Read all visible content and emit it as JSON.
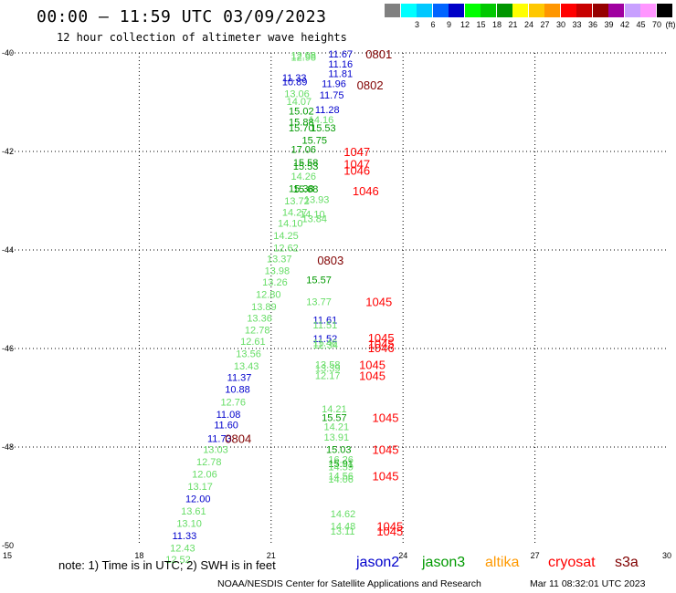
{
  "title": "00:00 – 11:59 UTC 03/09/2023",
  "subtitle": "12 hour collection of altimeter wave heights",
  "legend": {
    "unit": "(ft)",
    "bins": [
      {
        "label": "",
        "color": "#808080"
      },
      {
        "label": "3",
        "color": "#00ffff"
      },
      {
        "label": "6",
        "color": "#00c8ff"
      },
      {
        "label": "9",
        "color": "#0064ff"
      },
      {
        "label": "12",
        "color": "#0000c8"
      },
      {
        "label": "15",
        "color": "#00ff00"
      },
      {
        "label": "18",
        "color": "#00c800"
      },
      {
        "label": "21",
        "color": "#009600"
      },
      {
        "label": "24",
        "color": "#ffff00"
      },
      {
        "label": "27",
        "color": "#ffc800"
      },
      {
        "label": "30",
        "color": "#ff9600"
      },
      {
        "label": "33",
        "color": "#ff0000"
      },
      {
        "label": "36",
        "color": "#c80000"
      },
      {
        "label": "39",
        "color": "#960000"
      },
      {
        "label": "42",
        "color": "#a000a0"
      },
      {
        "label": "45",
        "color": "#c8a0ff"
      },
      {
        "label": "70",
        "color": "#ff96ff"
      },
      {
        "label": "",
        "color": "#000000"
      }
    ]
  },
  "axes": {
    "x_ticks": [
      "15",
      "18",
      "21",
      "24",
      "27",
      "30"
    ],
    "y_ticks": [
      "-40",
      "-42",
      "-44",
      "-46",
      "-48",
      "-50"
    ]
  },
  "colors": {
    "jason2": "#0000cc",
    "jason3": "#009900",
    "altika": "#ff9900",
    "cryosat": "#ff0000",
    "s3a": "#800000",
    "light_green": "#66dd66"
  },
  "observations": [
    {
      "lon": 21.45,
      "lat": -40.05,
      "text": "12.98",
      "c": "light_green"
    },
    {
      "lon": 21.45,
      "lat": -40.08,
      "text": "12.98",
      "c": "light_green"
    },
    {
      "lon": 22.3,
      "lat": -40.02,
      "text": "11.67",
      "c": "jason2"
    },
    {
      "lon": 22.3,
      "lat": -40.22,
      "text": "11.16",
      "c": "jason2"
    },
    {
      "lon": 22.3,
      "lat": -40.42,
      "text": "11.81",
      "c": "jason2"
    },
    {
      "lon": 21.25,
      "lat": -40.5,
      "text": "11.33",
      "c": "jason2"
    },
    {
      "lon": 21.25,
      "lat": -40.58,
      "text": "10.89",
      "c": "jason2"
    },
    {
      "lon": 22.15,
      "lat": -40.62,
      "text": "11.96",
      "c": "jason2"
    },
    {
      "lon": 21.3,
      "lat": -40.82,
      "text": "13.06",
      "c": "light_green"
    },
    {
      "lon": 22.1,
      "lat": -40.85,
      "text": "11.75",
      "c": "jason2"
    },
    {
      "lon": 21.35,
      "lat": -40.98,
      "text": "14.07",
      "c": "light_green"
    },
    {
      "lon": 21.4,
      "lat": -41.18,
      "text": "15.02",
      "c": "jason3"
    },
    {
      "lon": 22.0,
      "lat": -41.15,
      "text": "11.28",
      "c": "jason2"
    },
    {
      "lon": 21.85,
      "lat": -41.35,
      "text": "14.16",
      "c": "light_green"
    },
    {
      "lon": 21.4,
      "lat": -41.4,
      "text": "15.88",
      "c": "jason3"
    },
    {
      "lon": 21.4,
      "lat": -41.52,
      "text": "15.70",
      "c": "jason3"
    },
    {
      "lon": 21.9,
      "lat": -41.52,
      "text": "15.53",
      "c": "jason3"
    },
    {
      "lon": 21.7,
      "lat": -41.77,
      "text": "15.75",
      "c": "jason3"
    },
    {
      "lon": 21.45,
      "lat": -41.95,
      "text": "17.06",
      "c": "jason3"
    },
    {
      "lon": 21.5,
      "lat": -42.22,
      "text": "15.58",
      "c": "jason3"
    },
    {
      "lon": 21.5,
      "lat": -42.3,
      "text": "15.53",
      "c": "jason3"
    },
    {
      "lon": 21.45,
      "lat": -42.5,
      "text": "14.26",
      "c": "light_green"
    },
    {
      "lon": 21.4,
      "lat": -42.75,
      "text": "15.38",
      "c": "jason3"
    },
    {
      "lon": 21.5,
      "lat": -42.76,
      "text": "15.68",
      "c": "jason3"
    },
    {
      "lon": 21.75,
      "lat": -42.97,
      "text": "13.93",
      "c": "light_green"
    },
    {
      "lon": 21.3,
      "lat": -43.0,
      "text": "13.72",
      "c": "light_green"
    },
    {
      "lon": 21.25,
      "lat": -43.23,
      "text": "14.27",
      "c": "light_green"
    },
    {
      "lon": 21.65,
      "lat": -43.27,
      "text": "14.10",
      "c": "light_green"
    },
    {
      "lon": 21.7,
      "lat": -43.36,
      "text": "13.84",
      "c": "light_green"
    },
    {
      "lon": 21.15,
      "lat": -43.45,
      "text": "14.10",
      "c": "light_green"
    },
    {
      "lon": 21.05,
      "lat": -43.7,
      "text": "14.25",
      "c": "light_green"
    },
    {
      "lon": 21.05,
      "lat": -43.95,
      "text": "12.62",
      "c": "light_green"
    },
    {
      "lon": 20.9,
      "lat": -44.18,
      "text": "13.37",
      "c": "light_green"
    },
    {
      "lon": 20.85,
      "lat": -44.42,
      "text": "13.98",
      "c": "light_green"
    },
    {
      "lon": 21.8,
      "lat": -44.6,
      "text": "15.57",
      "c": "jason3"
    },
    {
      "lon": 20.8,
      "lat": -44.65,
      "text": "13.26",
      "c": "light_green"
    },
    {
      "lon": 20.65,
      "lat": -44.9,
      "text": "12.80",
      "c": "light_green"
    },
    {
      "lon": 21.8,
      "lat": -45.05,
      "text": "13.77",
      "c": "light_green"
    },
    {
      "lon": 20.55,
      "lat": -45.15,
      "text": "13.89",
      "c": "light_green"
    },
    {
      "lon": 20.45,
      "lat": -45.38,
      "text": "13.36",
      "c": "light_green"
    },
    {
      "lon": 21.95,
      "lat": -45.42,
      "text": "11.61",
      "c": "jason2"
    },
    {
      "lon": 21.95,
      "lat": -45.52,
      "text": "11.51",
      "c": "light_green"
    },
    {
      "lon": 20.4,
      "lat": -45.62,
      "text": "12.78",
      "c": "light_green"
    },
    {
      "lon": 20.3,
      "lat": -45.85,
      "text": "12.61",
      "c": "light_green"
    },
    {
      "lon": 21.95,
      "lat": -45.8,
      "text": "11.52",
      "c": "jason2"
    },
    {
      "lon": 21.95,
      "lat": -45.88,
      "text": "11.46",
      "c": "light_green"
    },
    {
      "lon": 21.95,
      "lat": -45.93,
      "text": "12.34",
      "c": "light_green"
    },
    {
      "lon": 20.2,
      "lat": -46.1,
      "text": "13.56",
      "c": "light_green"
    },
    {
      "lon": 20.15,
      "lat": -46.35,
      "text": "13.43",
      "c": "light_green"
    },
    {
      "lon": 22.0,
      "lat": -46.32,
      "text": "13.58",
      "c": "light_green"
    },
    {
      "lon": 22.0,
      "lat": -46.4,
      "text": "13.39",
      "c": "light_green"
    },
    {
      "lon": 22.0,
      "lat": -46.55,
      "text": "12.17",
      "c": "light_green"
    },
    {
      "lon": 20.0,
      "lat": -46.58,
      "text": "11.37",
      "c": "jason2"
    },
    {
      "lon": 19.95,
      "lat": -46.82,
      "text": "10.88",
      "c": "jason2"
    },
    {
      "lon": 19.85,
      "lat": -47.08,
      "text": "12.76",
      "c": "light_green"
    },
    {
      "lon": 22.15,
      "lat": -47.22,
      "text": "14.21",
      "c": "light_green"
    },
    {
      "lon": 19.75,
      "lat": -47.33,
      "text": "11.08",
      "c": "jason2"
    },
    {
      "lon": 22.15,
      "lat": -47.4,
      "text": "15.57",
      "c": "jason3"
    },
    {
      "lon": 22.2,
      "lat": -47.58,
      "text": "14.21",
      "c": "light_green"
    },
    {
      "lon": 19.7,
      "lat": -47.55,
      "text": "11.60",
      "c": "jason2"
    },
    {
      "lon": 22.2,
      "lat": -47.8,
      "text": "13.91",
      "c": "light_green"
    },
    {
      "lon": 19.55,
      "lat": -47.82,
      "text": "11.73",
      "c": "jason2"
    },
    {
      "lon": 19.45,
      "lat": -48.05,
      "text": "13.03",
      "c": "light_green"
    },
    {
      "lon": 22.25,
      "lat": -48.05,
      "text": "15.03",
      "c": "jason3"
    },
    {
      "lon": 22.3,
      "lat": -48.25,
      "text": "16.26",
      "c": "light_green"
    },
    {
      "lon": 19.3,
      "lat": -48.3,
      "text": "12.78",
      "c": "light_green"
    },
    {
      "lon": 22.3,
      "lat": -48.33,
      "text": "15.91",
      "c": "jason3"
    },
    {
      "lon": 22.3,
      "lat": -48.4,
      "text": "14.59",
      "c": "light_green"
    },
    {
      "lon": 19.2,
      "lat": -48.55,
      "text": "12.06",
      "c": "light_green"
    },
    {
      "lon": 22.3,
      "lat": -48.58,
      "text": "14.56",
      "c": "light_green"
    },
    {
      "lon": 22.3,
      "lat": -48.65,
      "text": "14.06",
      "c": "light_green"
    },
    {
      "lon": 19.1,
      "lat": -48.8,
      "text": "13.17",
      "c": "light_green"
    },
    {
      "lon": 19.05,
      "lat": -49.05,
      "text": "12.00",
      "c": "jason2"
    },
    {
      "lon": 18.95,
      "lat": -49.3,
      "text": "13.61",
      "c": "light_green"
    },
    {
      "lon": 22.35,
      "lat": -49.35,
      "text": "14.62",
      "c": "light_green"
    },
    {
      "lon": 18.85,
      "lat": -49.55,
      "text": "13.10",
      "c": "light_green"
    },
    {
      "lon": 22.35,
      "lat": -49.6,
      "text": "14.48",
      "c": "light_green"
    },
    {
      "lon": 22.35,
      "lat": -49.7,
      "text": "13.11",
      "c": "light_green"
    },
    {
      "lon": 18.75,
      "lat": -49.8,
      "text": "11.33",
      "c": "jason2"
    },
    {
      "lon": 18.7,
      "lat": -50.05,
      "text": "12.43",
      "c": "light_green"
    },
    {
      "lon": 18.6,
      "lat": -50.28,
      "text": "12.52",
      "c": "light_green"
    }
  ],
  "time_labels": [
    {
      "lon": 23.15,
      "lat": -40.02,
      "text": "0801",
      "c": "s3a"
    },
    {
      "lon": 22.95,
      "lat": -40.65,
      "text": "0802",
      "c": "s3a"
    },
    {
      "lon": 22.65,
      "lat": -42.0,
      "text": "1047",
      "c": "cryosat"
    },
    {
      "lon": 22.65,
      "lat": -42.25,
      "text": "1047",
      "c": "cryosat"
    },
    {
      "lon": 22.65,
      "lat": -42.38,
      "text": "1046",
      "c": "cryosat"
    },
    {
      "lon": 22.85,
      "lat": -42.8,
      "text": "1046",
      "c": "cryosat"
    },
    {
      "lon": 22.05,
      "lat": -44.2,
      "text": "0803",
      "c": "s3a"
    },
    {
      "lon": 23.15,
      "lat": -45.05,
      "text": "1045",
      "c": "cryosat"
    },
    {
      "lon": 23.2,
      "lat": -45.78,
      "text": "1045",
      "c": "cryosat"
    },
    {
      "lon": 23.2,
      "lat": -45.9,
      "text": "1045",
      "c": "cryosat"
    },
    {
      "lon": 23.2,
      "lat": -45.98,
      "text": "1046",
      "c": "cryosat"
    },
    {
      "lon": 23.0,
      "lat": -46.32,
      "text": "1045",
      "c": "cryosat"
    },
    {
      "lon": 23.0,
      "lat": -46.55,
      "text": "1045",
      "c": "cryosat"
    },
    {
      "lon": 23.3,
      "lat": -47.4,
      "text": "1045",
      "c": "cryosat"
    },
    {
      "lon": 23.3,
      "lat": -48.05,
      "text": "1045",
      "c": "cryosat"
    },
    {
      "lon": 23.3,
      "lat": -48.58,
      "text": "1045",
      "c": "cryosat"
    },
    {
      "lon": 19.95,
      "lat": -47.82,
      "text": "0804",
      "c": "s3a"
    },
    {
      "lon": 23.4,
      "lat": -49.6,
      "text": "1045",
      "c": "cryosat"
    },
    {
      "lon": 23.4,
      "lat": -49.7,
      "text": "1045",
      "c": "cryosat"
    }
  ],
  "footer": {
    "note": "note: 1) Time is in UTC; 2) SWH is in feet",
    "missions": [
      {
        "name": "jason2",
        "color": "#0000cc"
      },
      {
        "name": "jason3",
        "color": "#009900"
      },
      {
        "name": "altika",
        "color": "#ff9900"
      },
      {
        "name": "cryosat",
        "color": "#ff0000"
      },
      {
        "name": "s3a",
        "color": "#800000"
      }
    ],
    "credit": "NOAA/NESDIS Center for Satellite Applications and Research",
    "timestamp": "Mar 11 08:32:01 UTC 2023"
  }
}
